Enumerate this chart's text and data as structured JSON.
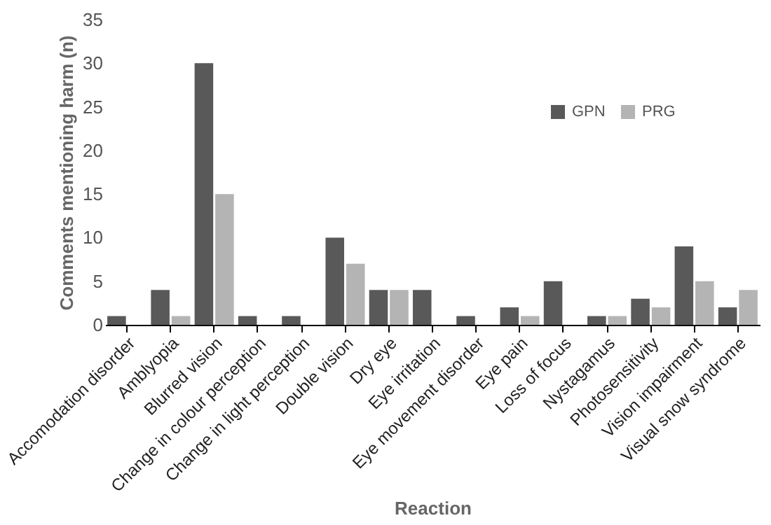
{
  "chart_data": {
    "type": "bar",
    "xlabel": "Reaction",
    "ylabel": "Comments mentioning harm (n)",
    "categories": [
      "Accomodation disorder",
      "Amblyopia",
      "Blurred vision",
      "Change in colour perception",
      "Change in light perception",
      "Double vision",
      "Dry eye",
      "Eye irritation",
      "Eye movement disorder",
      "Eye pain",
      "Loss of focus",
      "Nystagamus",
      "Photosensitivity",
      "Vision impairment",
      "Visual snow syndrome"
    ],
    "series": [
      {
        "name": "GPN",
        "color": "#595959",
        "values": [
          1,
          4,
          30,
          1,
          1,
          10,
          4,
          4,
          1,
          2,
          5,
          1,
          3,
          9,
          2
        ]
      },
      {
        "name": "PRG",
        "color": "#b4b4b4",
        "values": [
          0,
          1,
          15,
          0,
          0,
          7,
          4,
          0,
          0,
          1,
          0,
          1,
          2,
          5,
          4
        ]
      }
    ],
    "ylim": [
      0,
      35
    ],
    "yticks": [
      0,
      5,
      10,
      15,
      20,
      25,
      30,
      35
    ],
    "grid": false,
    "legend": "top right"
  }
}
